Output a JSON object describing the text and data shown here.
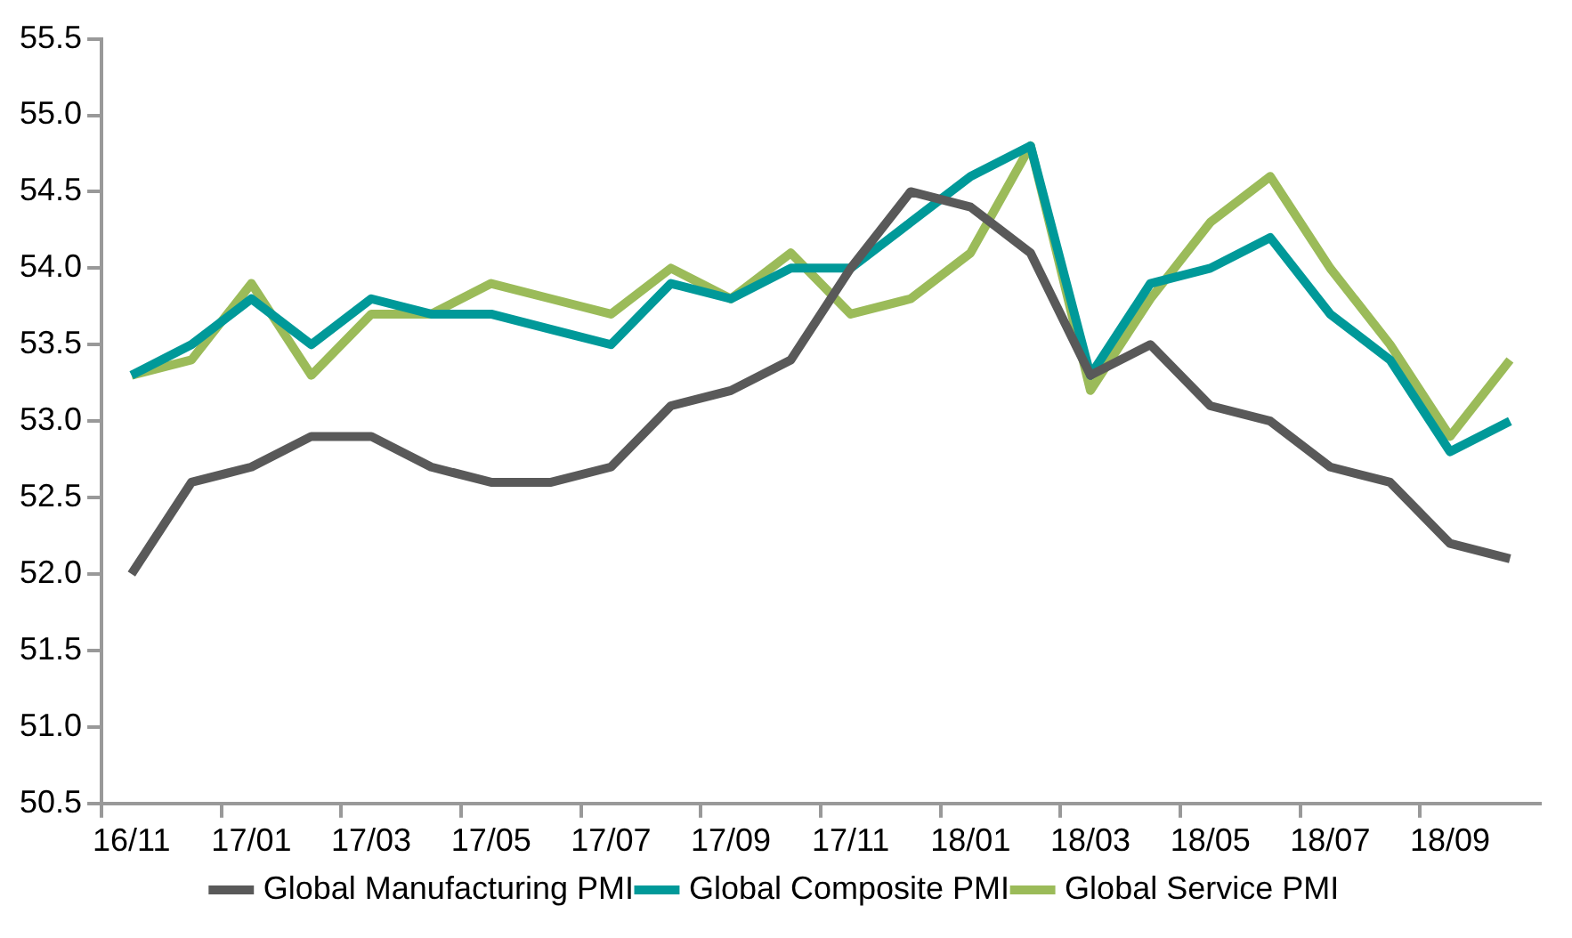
{
  "chart_data": {
    "type": "line",
    "categories": [
      "16/11",
      null,
      "17/01",
      null,
      "17/03",
      null,
      "17/05",
      null,
      "17/07",
      null,
      "17/09",
      null,
      "17/11",
      null,
      "18/01",
      null,
      "18/03",
      null,
      "18/05",
      null,
      "18/07",
      null,
      "18/09",
      null
    ],
    "series": [
      {
        "name": "Global Manufacturing PMI",
        "color": "#595959",
        "values": [
          52.0,
          52.6,
          52.7,
          52.9,
          52.9,
          52.7,
          52.6,
          52.6,
          52.7,
          53.1,
          53.2,
          53.4,
          54.0,
          54.5,
          54.4,
          54.1,
          53.3,
          53.5,
          53.1,
          53.0,
          52.7,
          52.6,
          52.2,
          52.1
        ]
      },
      {
        "name": "Global Composite PMI",
        "color": "#009999",
        "values": [
          53.3,
          53.5,
          53.8,
          53.5,
          53.8,
          53.7,
          53.7,
          53.6,
          53.5,
          53.9,
          53.8,
          54.0,
          54.0,
          54.3,
          54.6,
          54.8,
          53.3,
          53.9,
          54.0,
          54.2,
          53.7,
          53.4,
          52.8,
          53.0
        ]
      },
      {
        "name": "Global Service PMI",
        "color": "#9bbb59",
        "values": [
          53.3,
          53.4,
          53.9,
          53.3,
          53.7,
          53.7,
          53.9,
          53.8,
          53.7,
          54.0,
          53.8,
          54.1,
          53.7,
          53.8,
          54.1,
          54.8,
          53.2,
          53.8,
          54.3,
          54.6,
          54.0,
          53.5,
          52.9,
          53.4
        ]
      }
    ],
    "ylim": [
      50.5,
      55.5
    ],
    "yticks": [
      50.5,
      {
        "value": 51,
        "label": "51.0"
      },
      51.5,
      {
        "value": 52,
        "label": "52.0"
      },
      52.5,
      {
        "value": 53,
        "label": "53.0"
      },
      53.5,
      {
        "value": 54,
        "label": "54.0"
      },
      54.5,
      {
        "value": 55,
        "label": "55.0"
      },
      55.5
    ],
    "grid": false,
    "legend": "bottom",
    "marker": "none",
    "line_style": "solid"
  }
}
